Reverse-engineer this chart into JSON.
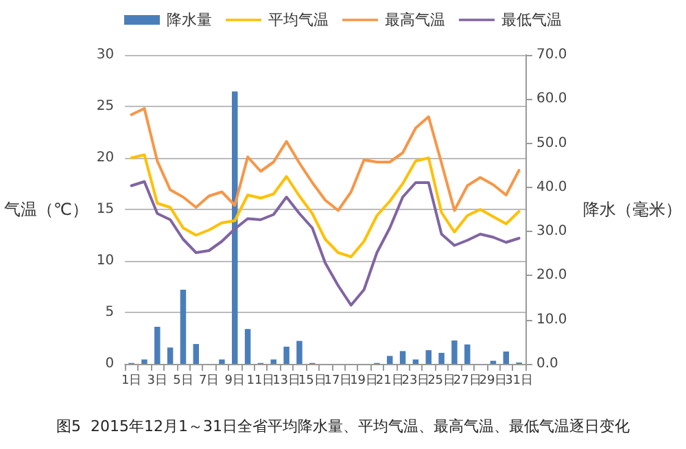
{
  "chart_data": {
    "type": "line",
    "title": "图5  2015年12月1～31日全省平均降水量、平均气温、最高气温、最低气温逐日变化",
    "categories": [
      "1日",
      null,
      "3日",
      null,
      "5日",
      null,
      "7日",
      null,
      "9日",
      null,
      "11日",
      null,
      "13日",
      null,
      "15日",
      null,
      "17日",
      null,
      "19日",
      null,
      "21日",
      null,
      "23日",
      null,
      "25日",
      null,
      "27日",
      null,
      "29日",
      null,
      "31日"
    ],
    "ylabel": "气温（℃）",
    "y2label": "降水（毫米）",
    "ylim": [
      0,
      30
    ],
    "yticks": [
      0,
      5,
      10,
      15,
      20,
      25,
      30
    ],
    "y2lim": [
      0,
      70
    ],
    "y2ticks": [
      {
        "value": 0,
        "label": "0.0"
      },
      {
        "value": 10,
        "label": "10.0"
      },
      {
        "value": 20,
        "label": "20.0"
      },
      {
        "value": 30,
        "label": "30.0"
      },
      {
        "value": 40,
        "label": "40.0"
      },
      {
        "value": 50,
        "label": "50.0"
      },
      {
        "value": 60,
        "label": "60.0"
      },
      {
        "value": 70,
        "label": "70.0"
      }
    ],
    "grid": "y",
    "legend": "top",
    "marker": "none",
    "line_style": "solid",
    "series": [
      {
        "name": "降水量",
        "type": "bar",
        "axis": "y2",
        "color": "#4a7ebb",
        "values": [
          0.2,
          1.0,
          8.4,
          3.7,
          16.8,
          4.5,
          0,
          1.0,
          61.7,
          7.9,
          0.2,
          1.0,
          3.9,
          5.2,
          0.2,
          0,
          0,
          0,
          0,
          0.2,
          1.8,
          2.9,
          1.0,
          3.1,
          2.5,
          5.3,
          4.4,
          0,
          0.7,
          2.8,
          0.3
        ]
      },
      {
        "name": "平均气温",
        "color": "#ffc000",
        "values": [
          20.0,
          20.3,
          15.6,
          15.2,
          13.2,
          12.5,
          13.0,
          13.7,
          13.9,
          16.4,
          16.1,
          16.5,
          18.2,
          16.3,
          14.6,
          12.1,
          10.8,
          10.4,
          11.9,
          14.4,
          15.8,
          17.5,
          19.7,
          20.0,
          14.7,
          12.8,
          14.4,
          15.0,
          14.3,
          13.6,
          14.8
        ]
      },
      {
        "name": "最高气温",
        "color": "#f79646",
        "values": [
          24.2,
          24.8,
          19.7,
          16.9,
          16.2,
          15.2,
          16.3,
          16.7,
          15.4,
          20.1,
          18.7,
          19.6,
          21.6,
          19.5,
          17.6,
          15.9,
          14.9,
          16.7,
          19.8,
          19.6,
          19.6,
          20.5,
          22.9,
          24.0,
          19.5,
          14.9,
          17.3,
          18.1,
          17.4,
          16.4,
          18.8
        ]
      },
      {
        "name": "最低气温",
        "color": "#8064a2",
        "values": [
          17.3,
          17.7,
          14.6,
          14.0,
          12.1,
          10.8,
          11.0,
          11.9,
          13.1,
          14.1,
          14.0,
          14.5,
          16.2,
          14.6,
          13.2,
          9.8,
          7.6,
          5.7,
          7.2,
          10.8,
          13.2,
          16.2,
          17.6,
          17.6,
          12.6,
          11.5,
          12.0,
          12.6,
          12.3,
          11.8,
          12.2
        ]
      }
    ]
  }
}
